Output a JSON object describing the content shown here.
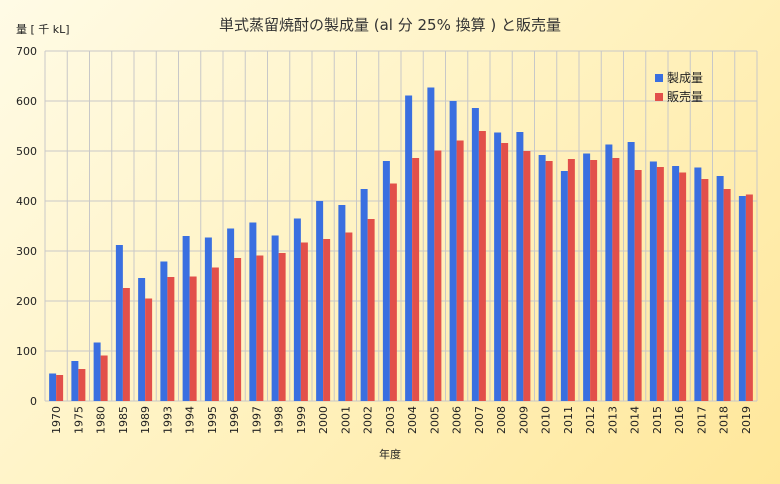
{
  "chart_data": {
    "type": "bar",
    "title": "単式蒸留焼酎の製成量 (al 分 25% 換算 ) と販売量",
    "xlabel": "年度",
    "ylabel": "量 [ 千 kL]",
    "ylim": [
      0,
      700
    ],
    "yticks": [
      0,
      100,
      200,
      300,
      400,
      500,
      600,
      700
    ],
    "grid": true,
    "legend_position": "top-right",
    "categories": [
      "1970",
      "1975",
      "1980",
      "1985",
      "1989",
      "1993",
      "1994",
      "1995",
      "1996",
      "1997",
      "1998",
      "1999",
      "2000",
      "2001",
      "2002",
      "2003",
      "2004",
      "2005",
      "2006",
      "2007",
      "2008",
      "2009",
      "2010",
      "2011",
      "2012",
      "2013",
      "2014",
      "2015",
      "2016",
      "2017",
      "2018",
      "2019"
    ],
    "series": [
      {
        "name": "製成量",
        "color": "#3a6fe0",
        "values": [
          55,
          80,
          117,
          312,
          246,
          279,
          330,
          327,
          345,
          357,
          331,
          365,
          400,
          392,
          424,
          480,
          611,
          627,
          600,
          586,
          537,
          538,
          492,
          460,
          495,
          513,
          518,
          479,
          470,
          467,
          450,
          410
        ]
      },
      {
        "name": "販売量",
        "color": "#e2504a",
        "values": [
          52,
          64,
          91,
          226,
          205,
          248,
          249,
          267,
          286,
          291,
          296,
          317,
          324,
          337,
          364,
          435,
          486,
          501,
          521,
          540,
          516,
          500,
          480,
          484,
          482,
          486,
          462,
          468,
          457,
          444,
          424,
          413
        ]
      }
    ]
  }
}
